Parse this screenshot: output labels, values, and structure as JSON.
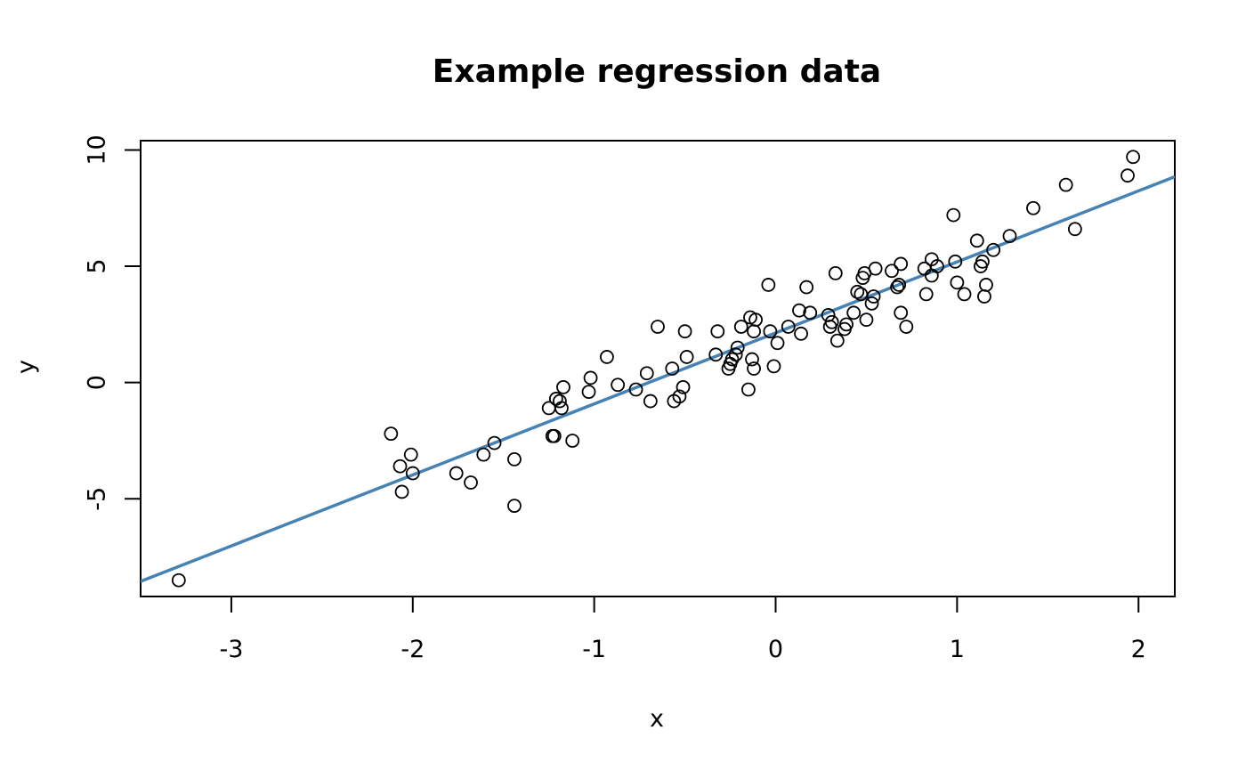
{
  "chart_data": {
    "type": "scatter",
    "title": "Example regression data",
    "xlabel": "x",
    "ylabel": "y",
    "xlim": [
      -3.5,
      2.2
    ],
    "ylim": [
      -9.2,
      10.4
    ],
    "x_ticks": [
      -3,
      -2,
      -1,
      0,
      1,
      2
    ],
    "y_ticks": [
      -5,
      0,
      5,
      10
    ],
    "grid": false,
    "legend": "none",
    "point_style": "open-circle",
    "point_color": "#000000",
    "series": [
      {
        "type": "scatter",
        "x": [
          -3.29,
          -2.12,
          -2.07,
          -2.06,
          -2.01,
          -2.0,
          -1.76,
          -1.68,
          -1.61,
          -1.55,
          -1.44,
          -1.44,
          -1.25,
          -1.23,
          -1.22,
          -1.21,
          -1.19,
          -1.18,
          -1.17,
          -1.12,
          -1.03,
          -1.02,
          -0.93,
          -0.87,
          -0.77,
          -0.71,
          -0.69,
          -0.65,
          -0.57,
          -0.56,
          -0.53,
          -0.51,
          -0.5,
          -0.49,
          -0.33,
          -0.32,
          -0.26,
          -0.25,
          -0.24,
          -0.22,
          -0.21,
          -0.19,
          -0.15,
          -0.14,
          -0.13,
          -0.12,
          -0.12,
          -0.11,
          -0.04,
          -0.03,
          -0.01,
          0.01,
          0.07,
          0.13,
          0.14,
          0.17,
          0.19,
          0.29,
          0.3,
          0.31,
          0.33,
          0.34,
          0.38,
          0.39,
          0.43,
          0.45,
          0.47,
          0.48,
          0.49,
          0.5,
          0.53,
          0.54,
          0.55,
          0.64,
          0.67,
          0.68,
          0.69,
          0.69,
          0.72,
          0.82,
          0.83,
          0.86,
          0.86,
          0.89,
          0.98,
          0.99,
          1.0,
          1.04,
          1.11,
          1.13,
          1.14,
          1.15,
          1.16,
          1.2,
          1.29,
          1.42,
          1.6,
          1.65,
          1.94,
          1.97
        ],
        "y": [
          -8.5,
          -2.2,
          -3.6,
          -4.7,
          -3.1,
          -3.9,
          -3.9,
          -4.3,
          -3.1,
          -2.6,
          -3.3,
          -5.3,
          -1.1,
          -2.3,
          -2.3,
          -0.7,
          -0.8,
          -1.1,
          -0.2,
          -2.5,
          -0.4,
          0.2,
          1.1,
          -0.1,
          -0.3,
          0.4,
          -0.8,
          2.4,
          0.6,
          -0.8,
          -0.6,
          -0.2,
          2.2,
          1.1,
          1.2,
          2.2,
          0.6,
          0.8,
          1.0,
          1.2,
          1.5,
          2.4,
          -0.3,
          2.8,
          1.0,
          0.6,
          2.2,
          2.7,
          4.2,
          2.2,
          0.7,
          1.7,
          2.4,
          3.1,
          2.1,
          4.1,
          3.0,
          2.9,
          2.4,
          2.6,
          4.7,
          1.8,
          2.3,
          2.5,
          3.0,
          3.9,
          3.8,
          4.5,
          4.7,
          2.7,
          3.4,
          3.7,
          4.9,
          4.8,
          4.1,
          4.2,
          3.0,
          5.1,
          2.4,
          4.9,
          3.8,
          4.6,
          5.3,
          5.0,
          7.2,
          5.2,
          4.3,
          3.8,
          6.1,
          5.0,
          5.2,
          3.7,
          4.2,
          5.7,
          6.3,
          7.5,
          8.5,
          6.6,
          8.9,
          9.7
        ]
      },
      {
        "type": "line",
        "name": "",
        "color": "#4682b4",
        "x": [
          -3.5,
          2.2
        ],
        "y": [
          -8.55,
          8.85
        ]
      }
    ]
  }
}
